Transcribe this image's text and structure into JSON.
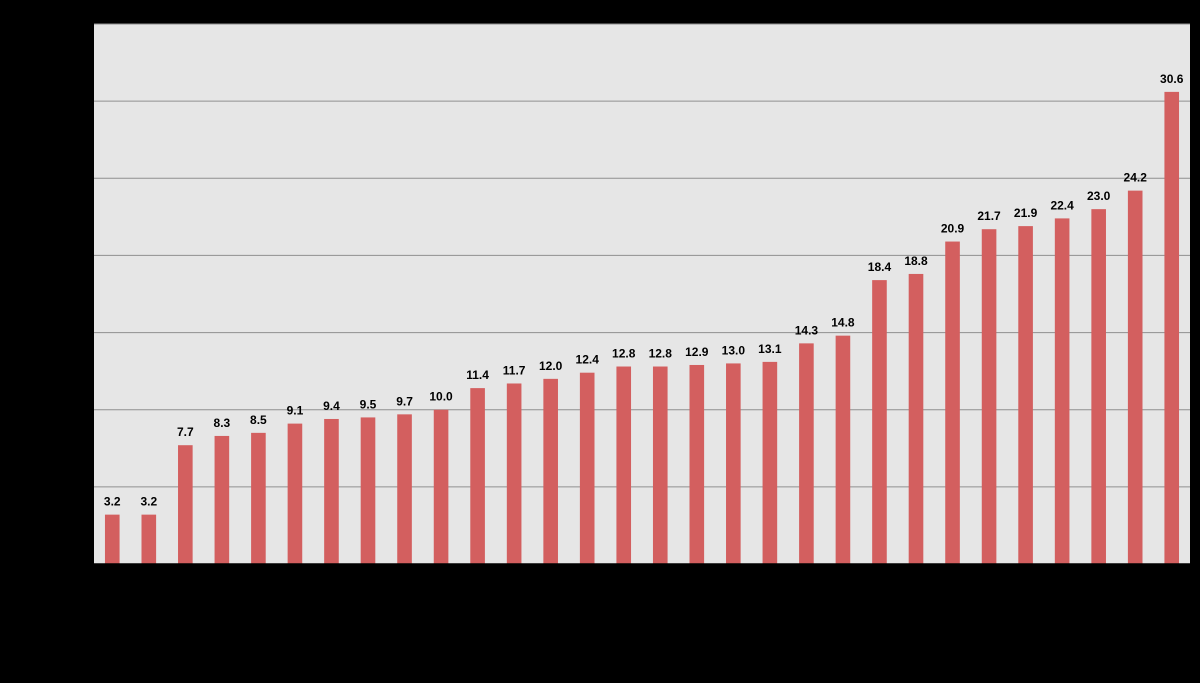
{
  "chart_data": {
    "type": "bar",
    "title": "",
    "xlabel": "",
    "ylabel": "",
    "categories": [],
    "values": [
      3.2,
      3.2,
      7.7,
      8.3,
      8.5,
      9.1,
      9.4,
      9.5,
      9.7,
      10.0,
      11.4,
      11.7,
      12.0,
      12.4,
      12.8,
      12.8,
      12.9,
      13.0,
      13.1,
      14.3,
      14.8,
      18.4,
      18.8,
      20.9,
      21.7,
      21.9,
      22.4,
      23.0,
      24.2,
      30.6
    ],
    "labels": [
      "3.2",
      "3.2",
      "7.7",
      "8.3",
      "8.5",
      "9.1",
      "9.4",
      "9.5",
      "9.7",
      "10.0",
      "11.4",
      "11.7",
      "12.0",
      "12.4",
      "12.8",
      "12.8",
      "12.9",
      "13.0",
      "13.1",
      "14.3",
      "14.8",
      "18.4",
      "18.8",
      "20.9",
      "21.7",
      "21.9",
      "22.4",
      "23.0",
      "24.2",
      "30.6"
    ],
    "ylim": [
      0,
      35
    ],
    "grid": true,
    "legend": "none",
    "colors": {
      "background": "#000000",
      "plot_area": "#e6e6e6",
      "bar": "#d35f5f",
      "gridline": "#8f8f8f",
      "data_label": "#000000"
    }
  }
}
